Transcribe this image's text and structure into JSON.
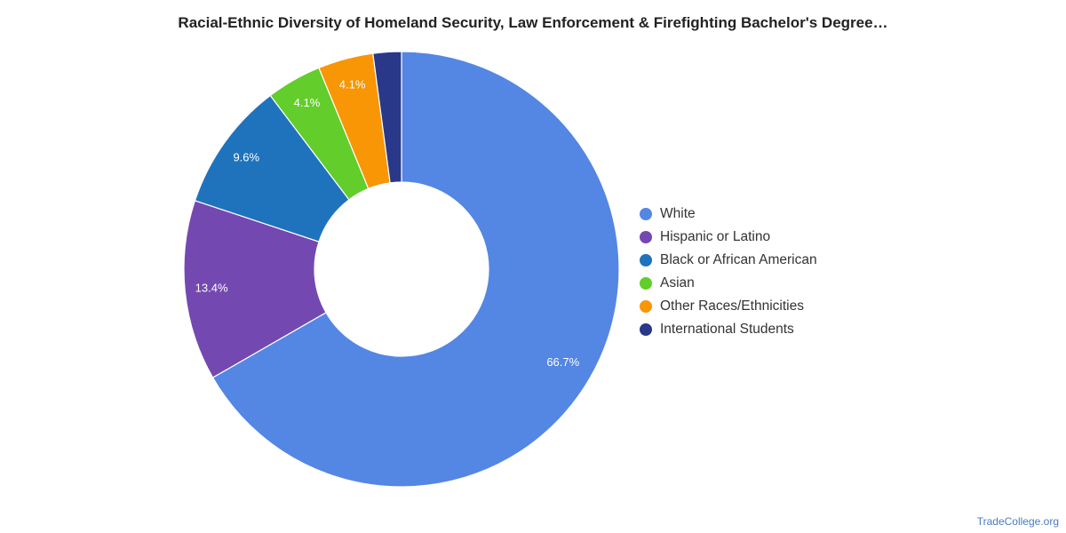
{
  "chart_data": {
    "type": "pie",
    "title": "Racial-Ethnic Diversity of Homeland Security, Law Enforcement & Firefighting Bachelor's Degree…",
    "categories": [
      "White",
      "Hispanic or Latino",
      "Black or African American",
      "Asian",
      "Other Races/Ethnicities",
      "International Students"
    ],
    "values": [
      66.7,
      13.4,
      9.6,
      4.1,
      4.1,
      2.1
    ],
    "data_labels": [
      "66.7%",
      "13.4%",
      "9.6%",
      "4.1%",
      "4.1%",
      ""
    ],
    "colors": [
      "#5486e4",
      "#7448b1",
      "#1f73bd",
      "#62cd2b",
      "#f89605",
      "#293889"
    ],
    "donut": true,
    "legend_position": "right"
  },
  "footer": {
    "credit": "TradeCollege.org"
  }
}
